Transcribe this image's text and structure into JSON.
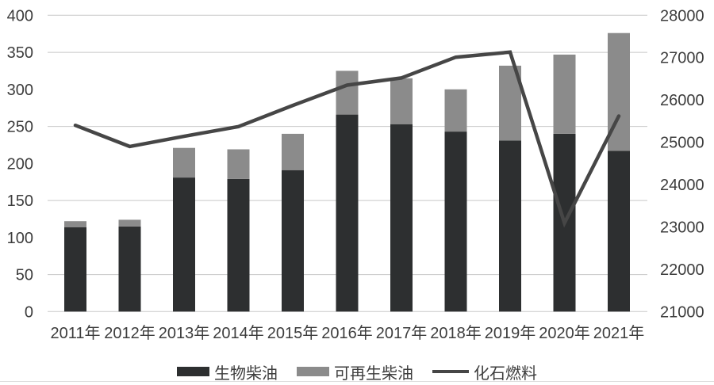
{
  "chart_data": {
    "type": "bar",
    "subtype": "stacked-bars-with-line",
    "title": "",
    "categories": [
      "2011年",
      "2012年",
      "2013年",
      "2014年",
      "2015年",
      "2016年",
      "2017年",
      "2018年",
      "2019年",
      "2020年",
      "2021年"
    ],
    "series": [
      {
        "name": "生物柴油",
        "type": "bar",
        "stack": "diesel",
        "axis": "left",
        "color": "#2d2f30",
        "values": [
          114,
          115,
          181,
          179,
          191,
          266,
          253,
          243,
          231,
          240,
          217
        ]
      },
      {
        "name": "可再生柴油",
        "type": "bar",
        "stack": "diesel",
        "axis": "left",
        "color": "#8b8b8b",
        "values": [
          8,
          9,
          40,
          40,
          49,
          59,
          62,
          57,
          101,
          107,
          159
        ]
      },
      {
        "name": "化石燃料",
        "type": "line",
        "axis": "right",
        "color": "#464646",
        "values": [
          25400,
          24900,
          25140,
          25370,
          25870,
          26350,
          26520,
          27010,
          27130,
          23090,
          25620
        ]
      }
    ],
    "left_axis": {
      "min": 0,
      "max": 400,
      "ticks": [
        "400",
        "350",
        "300",
        "250",
        "200",
        "150",
        "100",
        "50",
        "0"
      ]
    },
    "right_axis": {
      "min": 21000,
      "max": 28000,
      "ticks": [
        "28000",
        "27000",
        "26000",
        "25000",
        "24000",
        "23000",
        "22000",
        "21000"
      ]
    },
    "gridlines_at_left_values": [
      400,
      350,
      250,
      150,
      50,
      0
    ],
    "legend": {
      "position": "bottom",
      "entries": [
        {
          "label": "生物柴油",
          "swatch": "bar",
          "color": "#2d2f30"
        },
        {
          "label": "可再生柴油",
          "swatch": "bar",
          "color": "#8b8b8b"
        },
        {
          "label": "化石燃料",
          "swatch": "line",
          "color": "#464646"
        }
      ]
    },
    "colors": {
      "background": "#ffffff",
      "gridline": "#c8c8c8",
      "axis_text": "#3d3d3d"
    }
  }
}
